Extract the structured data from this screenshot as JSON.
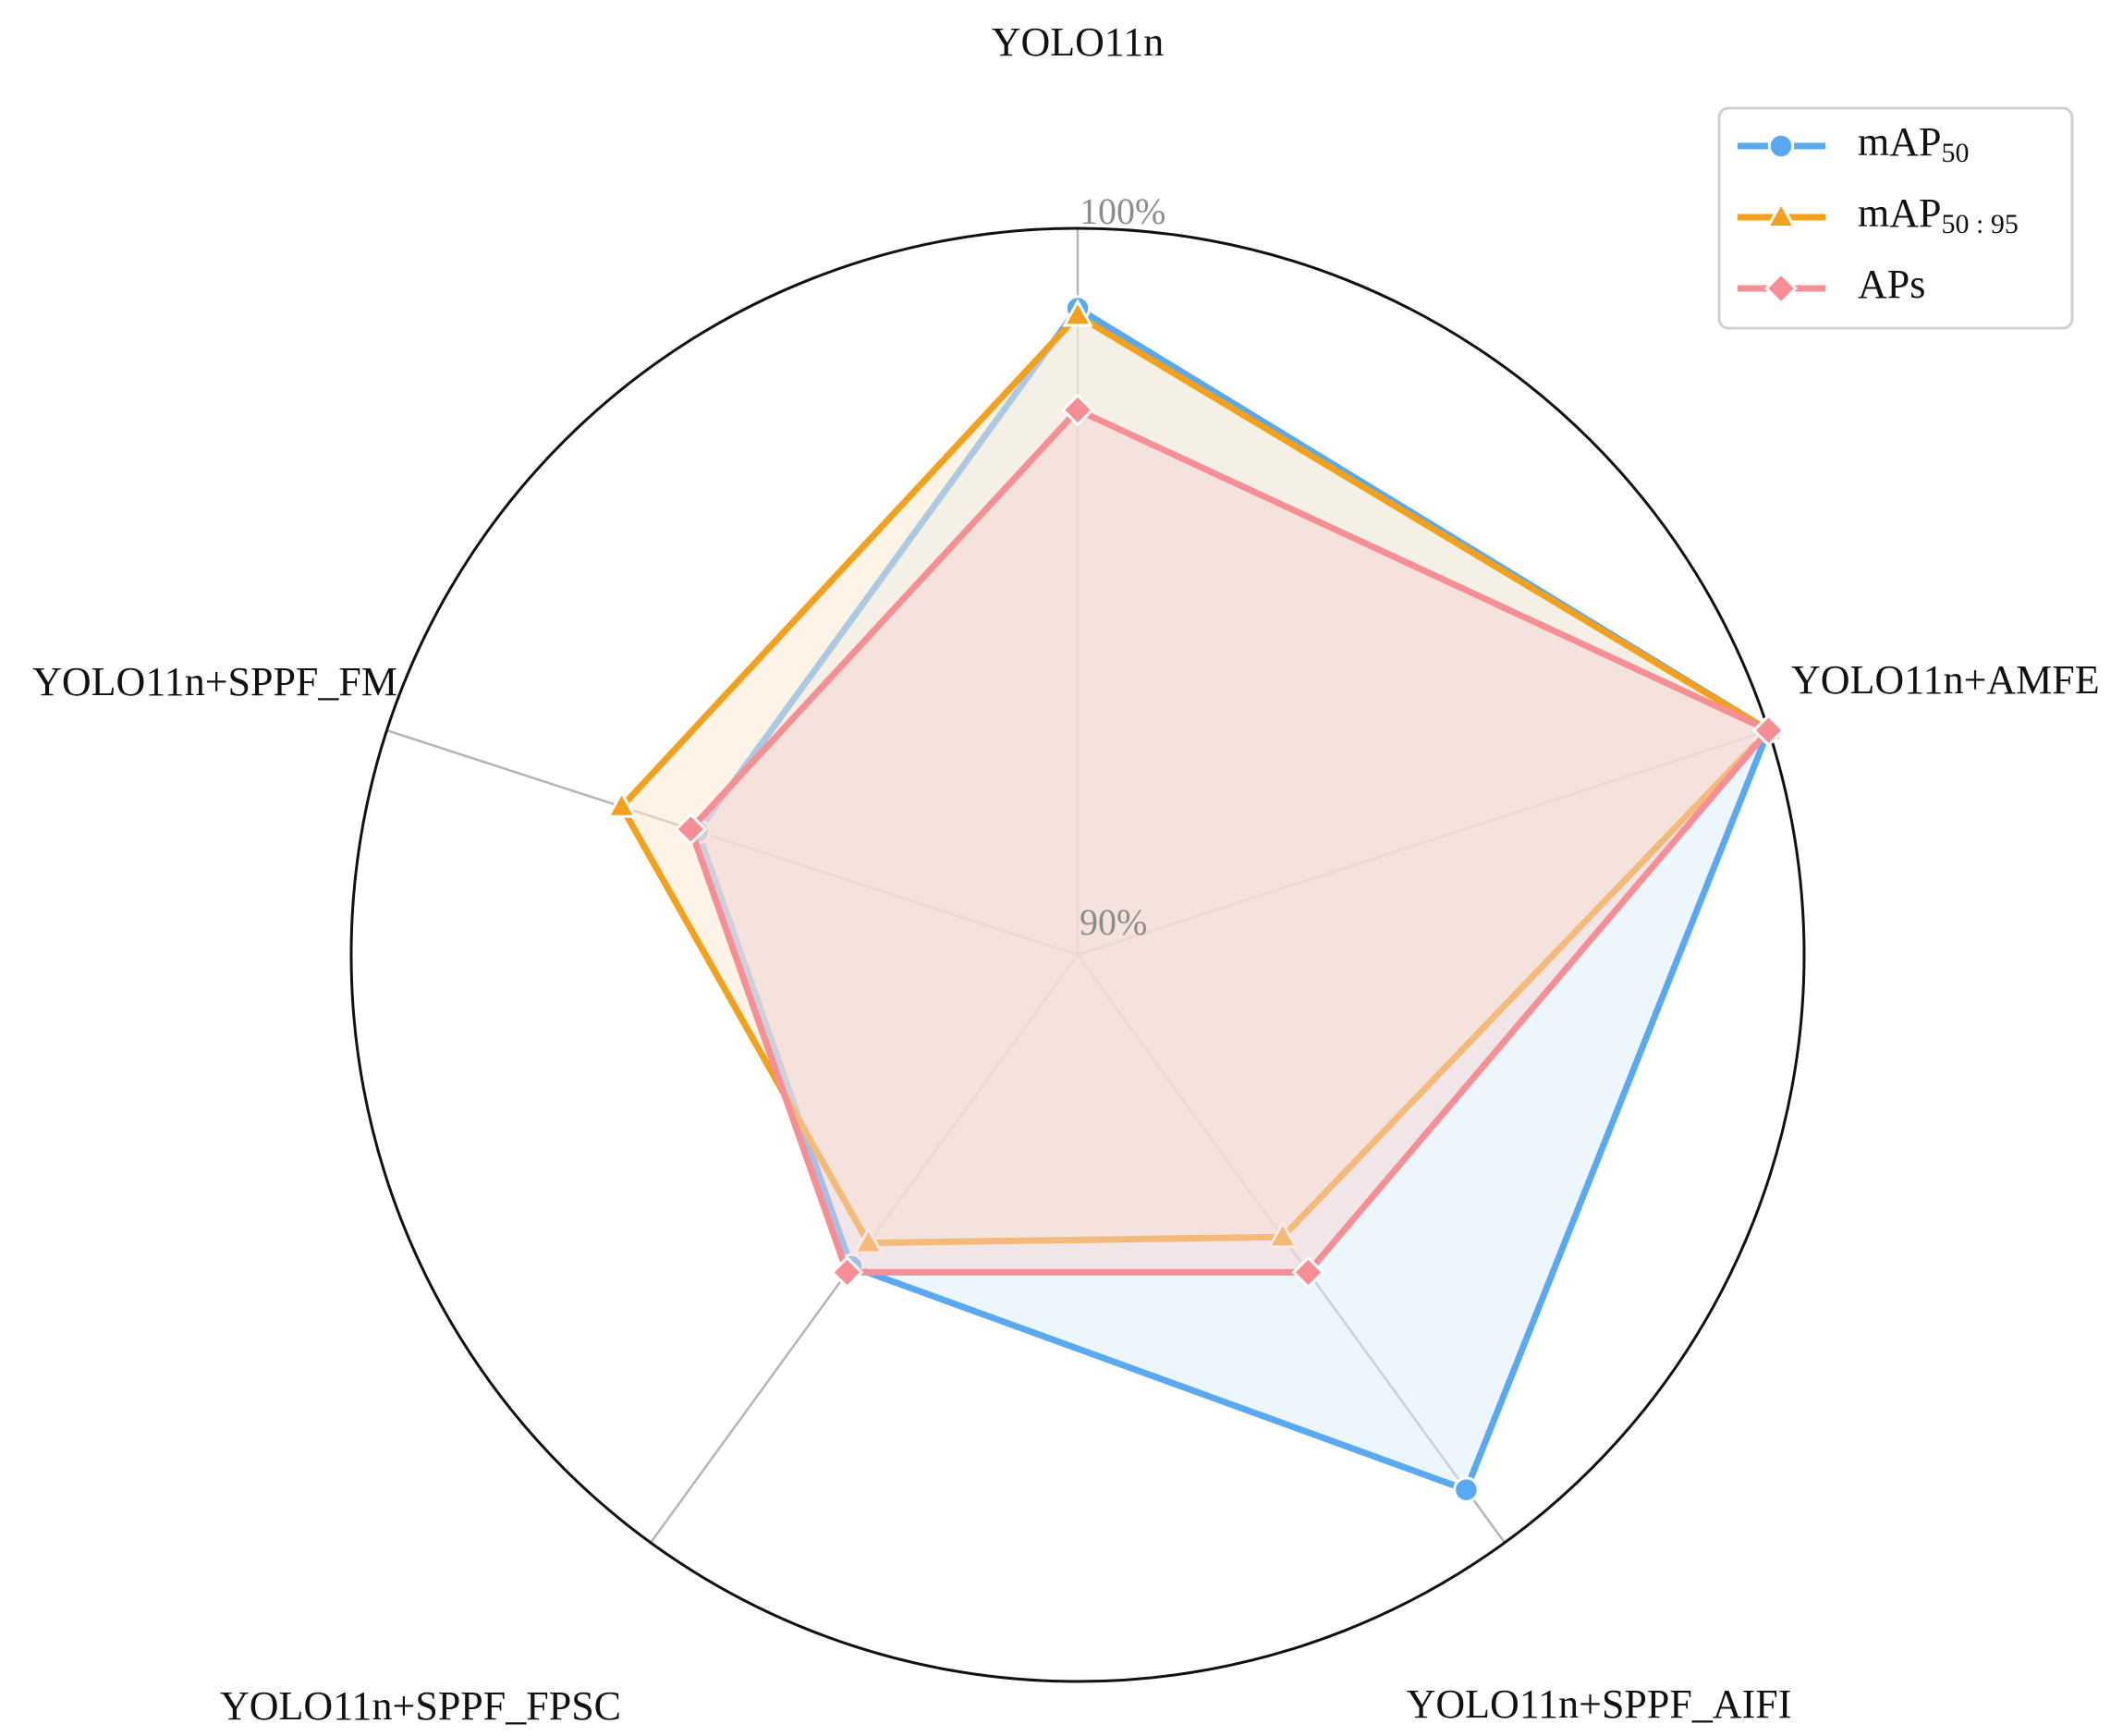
{
  "chart_data": {
    "type": "radar",
    "axes": [
      "YOLO11n",
      "YOLO11n+AMFE",
      "YOLO11n+SPPF_AIFI",
      "YOLO11n+SPPF_FPSC",
      "YOLO11n+SPPF_FM"
    ],
    "radial_ticks": [
      "90%",
      "100%"
    ],
    "radial_range": [
      90,
      100
    ],
    "grid": true,
    "legend_position": "top-right",
    "series": [
      {
        "name": "mAP50",
        "label_main": "mAP",
        "label_sub": "50",
        "color": "#5aa9f0",
        "fill": "#deeefb",
        "marker": "circle",
        "values": [
          98.9,
          100.0,
          99.1,
          95.3,
          95.5
        ]
      },
      {
        "name": "mAP50:95",
        "label_main": "mAP",
        "label_sub": "50 : 95",
        "color": "#f2a11f",
        "fill": "#fbead0",
        "marker": "triangle",
        "values": [
          98.8,
          100.0,
          94.8,
          94.9,
          96.6
        ]
      },
      {
        "name": "APs",
        "label_main": "APs",
        "label_sub": "",
        "color": "#f58f95",
        "fill": "#f6d3d3",
        "marker": "diamond",
        "values": [
          97.5,
          100.0,
          95.4,
          95.4,
          95.6
        ]
      }
    ]
  }
}
